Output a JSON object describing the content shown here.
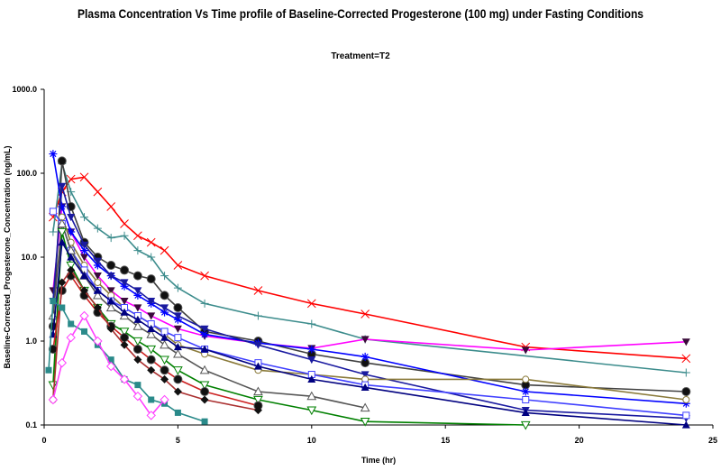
{
  "chart_data": {
    "type": "line",
    "title": "Plasma Concentration Vs Time profile of Baseline-Corrected Progesterone (100 mg) under Fasting Conditions",
    "subtitle": "Treatment=T2",
    "xlabel": "Time (hr)",
    "ylabel": "Baseline-Corrected_Progesterone_Concentration (ng/mL)",
    "xlim": [
      0,
      25
    ],
    "ylim": [
      0.1,
      1000
    ],
    "yscale": "log",
    "x_ticks": [
      "0",
      "5",
      "10",
      "15",
      "20",
      "25"
    ],
    "y_ticks": [
      "0.1",
      "1.0",
      "10.0",
      "100.0",
      "1000.0"
    ],
    "grid": false,
    "legend": "none",
    "series": [
      {
        "color": "#ff0000",
        "marker": "x",
        "x": [
          0.333,
          0.667,
          1,
          1.5,
          2,
          2.5,
          3,
          3.5,
          4,
          4.5,
          5,
          6,
          8,
          10,
          12,
          18,
          24
        ],
        "y": [
          30,
          60,
          85,
          90,
          60,
          40,
          25,
          18,
          15,
          12,
          8,
          6,
          4,
          2.8,
          2.1,
          0.85,
          0.62
        ]
      },
      {
        "color": "#3c8c8c",
        "marker": "plus",
        "x": [
          0.333,
          0.667,
          1,
          1.5,
          2,
          2.5,
          3,
          3.5,
          4,
          4.5,
          5,
          6,
          8,
          10,
          12,
          24
        ],
        "y": [
          20,
          130,
          60,
          30,
          22,
          17,
          18,
          12,
          10,
          6,
          4.3,
          2.8,
          2,
          1.6,
          1.05,
          0.42
        ]
      },
      {
        "color": "#ff00ff",
        "marker": "triangle-down",
        "x": [
          0.333,
          0.667,
          1,
          1.5,
          2,
          2.5,
          3,
          3.5,
          4,
          5,
          6,
          8,
          10,
          12,
          18,
          24
        ],
        "y": [
          4,
          40,
          20,
          10,
          6,
          4,
          3,
          2.5,
          2,
          1.4,
          1.15,
          0.95,
          0.82,
          1.05,
          0.78,
          0.98
        ]
      },
      {
        "color": "#404040",
        "marker": "circle",
        "x": [
          0.333,
          0.667,
          1,
          1.5,
          2,
          2.5,
          3,
          3.5,
          4,
          4.5,
          5,
          6,
          8,
          10,
          12,
          18,
          24
        ],
        "y": [
          1.5,
          140,
          40,
          15,
          10,
          8,
          7,
          6,
          5.5,
          3.5,
          2.5,
          1.3,
          1.0,
          0.7,
          0.55,
          0.3,
          0.25
        ]
      },
      {
        "color": "#0000ff",
        "marker": "asterisk",
        "x": [
          0.333,
          0.667,
          1,
          1.5,
          2,
          2.5,
          3,
          3.5,
          4,
          4.5,
          5,
          6,
          8,
          10,
          12,
          18,
          24
        ],
        "y": [
          170,
          40,
          20,
          12,
          8,
          6,
          4.5,
          3.5,
          2.8,
          2.2,
          1.8,
          1.2,
          0.95,
          0.8,
          0.65,
          0.25,
          0.18
        ]
      },
      {
        "color": "#1a1aa0",
        "marker": "triangle-down",
        "x": [
          0.333,
          0.667,
          1,
          1.5,
          2,
          2.5,
          3,
          3.5,
          4,
          4.5,
          5,
          6,
          8,
          10,
          12,
          18,
          24
        ],
        "y": [
          3,
          70,
          30,
          14,
          9,
          6,
          5,
          4,
          3,
          2.5,
          2,
          1.4,
          0.9,
          0.6,
          0.4,
          0.15,
          0.12
        ]
      },
      {
        "color": "#8a7a3a",
        "marker": "circle-open",
        "x": [
          0.333,
          0.667,
          1,
          1.5,
          2,
          2.5,
          3,
          3.5,
          4,
          4.5,
          5,
          6,
          8,
          10,
          12,
          18,
          24
        ],
        "y": [
          0.2,
          30,
          15,
          8,
          5,
          3.5,
          2.5,
          2,
          1.6,
          1.2,
          0.9,
          0.7,
          0.45,
          0.4,
          0.35,
          0.35,
          0.2
        ]
      },
      {
        "color": "#4040ff",
        "marker": "square-open",
        "x": [
          0.333,
          0.667,
          1,
          1.5,
          2,
          2.5,
          3,
          3.5,
          4,
          4.5,
          5,
          6,
          8,
          10,
          12,
          18,
          24
        ],
        "y": [
          35,
          25,
          12,
          7,
          4,
          3,
          2.5,
          2,
          1.6,
          1.3,
          1.1,
          0.8,
          0.55,
          0.4,
          0.3,
          0.2,
          0.13
        ]
      },
      {
        "color": "#555555",
        "marker": "triangle-open",
        "x": [
          0.333,
          0.667,
          1,
          1.5,
          2,
          2.5,
          3,
          3.5,
          4,
          4.5,
          5,
          6,
          8,
          10,
          12
        ],
        "y": [
          2,
          25,
          12,
          6,
          3.5,
          2.5,
          2,
          1.5,
          1.2,
          0.9,
          0.7,
          0.45,
          0.25,
          0.22,
          0.16
        ]
      },
      {
        "color": "#008000",
        "marker": "triangle-down-open",
        "x": [
          0.333,
          0.667,
          1,
          1.5,
          2,
          2.5,
          3,
          3.5,
          4,
          4.5,
          5,
          6,
          8,
          10,
          12,
          18
        ],
        "y": [
          0.3,
          20,
          8,
          4,
          2.5,
          1.6,
          1.3,
          1,
          0.8,
          0.6,
          0.45,
          0.3,
          0.2,
          0.15,
          0.11,
          0.1
        ]
      },
      {
        "color": "#000080",
        "marker": "triangle",
        "x": [
          0.333,
          0.667,
          1,
          1.5,
          2,
          2.5,
          3,
          3.5,
          4,
          4.5,
          5,
          6,
          8,
          10,
          12,
          18,
          24
        ],
        "y": [
          1.2,
          15,
          10,
          6,
          4,
          3,
          2.2,
          1.8,
          1.4,
          1.1,
          0.85,
          0.8,
          0.5,
          0.35,
          0.28,
          0.14,
          0.1
        ]
      },
      {
        "color": "#cc2020",
        "marker": "circle",
        "x": [
          0.333,
          0.667,
          1,
          1.5,
          2,
          2.5,
          3,
          3.5,
          4,
          4.5,
          5,
          6,
          8
        ],
        "y": [
          0.8,
          4,
          6,
          3.5,
          2.2,
          1.5,
          1.1,
          0.8,
          0.6,
          0.45,
          0.35,
          0.25,
          0.17
        ]
      },
      {
        "color": "#aa3030",
        "marker": "diamond",
        "x": [
          0.333,
          0.667,
          1,
          1.5,
          2,
          2.5,
          3,
          3.5,
          4,
          4.5,
          5,
          6,
          8
        ],
        "y": [
          0.2,
          5,
          7,
          4,
          2.5,
          1.4,
          0.9,
          0.6,
          0.45,
          0.35,
          0.25,
          0.2,
          0.15
        ]
      },
      {
        "color": "#2a8a8a",
        "marker": "square",
        "x": [
          0.167,
          0.333,
          0.667,
          1,
          1.5,
          2,
          2.5,
          3,
          3.5,
          4,
          4.5,
          5,
          6
        ],
        "y": [
          0.45,
          3,
          2.5,
          1.6,
          1.3,
          0.9,
          0.6,
          0.35,
          0.3,
          0.2,
          0.18,
          0.14,
          0.11
        ]
      },
      {
        "color": "#ff40ff",
        "marker": "diamond-open",
        "x": [
          0.333,
          0.667,
          1,
          1.5,
          2,
          2.5,
          3,
          3.5,
          4,
          4.5
        ],
        "y": [
          0.2,
          0.55,
          1.1,
          2,
          1,
          0.5,
          0.35,
          0.22,
          0.13,
          0.2
        ]
      }
    ]
  }
}
